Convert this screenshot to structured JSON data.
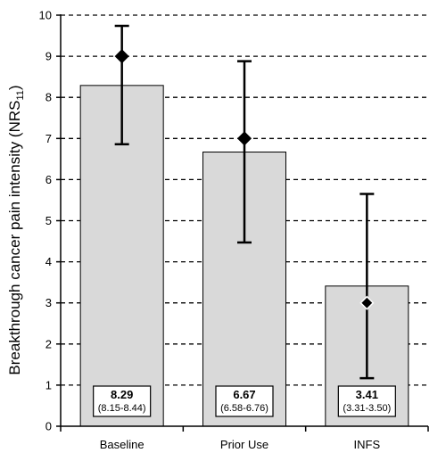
{
  "chart_data": {
    "type": "bar",
    "categories": [
      "Baseline",
      "Prior Use",
      "INFS"
    ],
    "ylabel": "Breakthrough cancer pain intensity (NRS",
    "ylabel_subscript": "11",
    "ylabel_close": ")",
    "ylim": [
      0,
      10
    ],
    "yticks": [
      "0",
      "1",
      "2",
      "3",
      "4",
      "5",
      "6",
      "7",
      "8",
      "9",
      "10"
    ],
    "grid": true,
    "bars": [
      {
        "category": "Baseline",
        "mean": 8.29,
        "mean_label": "8.29",
        "ci_label": "(8.15-8.44)",
        "median": 9,
        "whisker_low": 6.86,
        "whisker_high": 9.74
      },
      {
        "category": "Prior Use",
        "mean": 6.67,
        "mean_label": "6.67",
        "ci_label": "(6.58-6.76)",
        "median": 7,
        "whisker_low": 4.47,
        "whisker_high": 8.88
      },
      {
        "category": "INFS",
        "mean": 3.41,
        "mean_label": "3.41",
        "ci_label": "(3.31-3.50)",
        "median": 3,
        "whisker_low": 1.17,
        "whisker_high": 5.65
      }
    ],
    "colors": {
      "bar": "#d9d9d9",
      "marker_dark": "#000000",
      "marker_light": "#ffffff"
    },
    "marker_style": [
      "dark",
      "dark",
      "light"
    ]
  }
}
